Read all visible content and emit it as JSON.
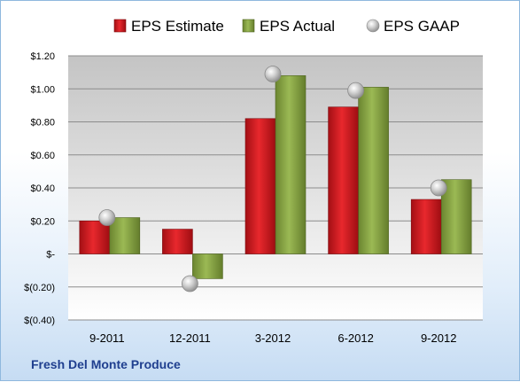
{
  "company": "Fresh Del Monte Produce",
  "chart_data": {
    "type": "bar",
    "title": "",
    "xlabel": "",
    "ylabel": "",
    "categories": [
      "9-2011",
      "12-2011",
      "3-2012",
      "6-2012",
      "9-2012"
    ],
    "series": [
      {
        "name": "EPS Estimate",
        "kind": "bar",
        "values": [
          0.2,
          0.15,
          0.82,
          0.89,
          0.33
        ],
        "color": "#c0151b"
      },
      {
        "name": "EPS Actual",
        "kind": "bar",
        "values": [
          0.22,
          -0.15,
          1.08,
          1.01,
          0.45
        ],
        "color": "#7f9a3a"
      },
      {
        "name": "EPS GAAP",
        "kind": "marker",
        "values": [
          0.22,
          -0.18,
          1.09,
          0.99,
          0.4
        ],
        "color": "#b4b4b4"
      }
    ],
    "ylim": [
      -0.4,
      1.2
    ],
    "yticks": [
      {
        "value": 1.2,
        "label": "$1.20"
      },
      {
        "value": 1.0,
        "label": "$1.00"
      },
      {
        "value": 0.8,
        "label": "$0.80"
      },
      {
        "value": 0.6,
        "label": "$0.60"
      },
      {
        "value": 0.4,
        "label": "$0.40"
      },
      {
        "value": 0.2,
        "label": "$0.20"
      },
      {
        "value": 0.0,
        "label": "$-"
      },
      {
        "value": -0.2,
        "label": "$(0.20)"
      },
      {
        "value": -0.4,
        "label": "$(0.40)"
      }
    ],
    "grid": true,
    "legend": "top"
  }
}
